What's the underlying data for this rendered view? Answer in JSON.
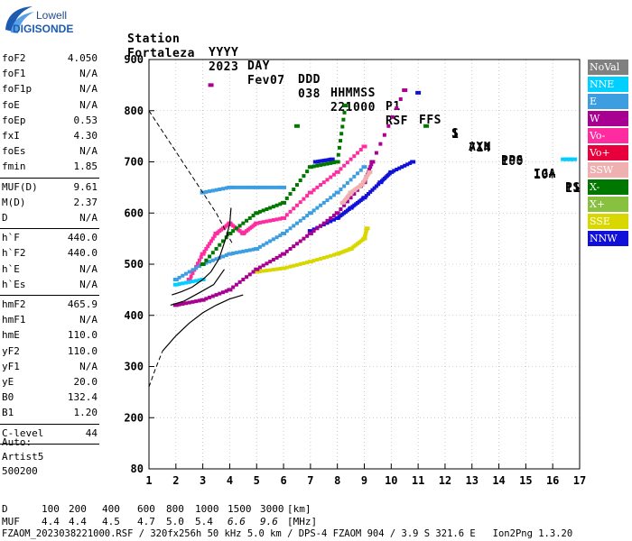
{
  "logo": {
    "line1": "Lowell",
    "line2": "DIGISONDE"
  },
  "header": {
    "labels": [
      "Station",
      "YYYY",
      "DAY",
      "DDD",
      "HHMMSS",
      "P1",
      "FFS",
      "S",
      "AXN",
      "PPS",
      "IGA",
      "PS"
    ],
    "values": [
      "Fortaleza",
      "2023",
      "Fev07",
      "038",
      "221000",
      "RSF",
      "1",
      "714",
      "100",
      "10+",
      "11"
    ]
  },
  "params": [
    [
      {
        "name": "foF2",
        "value": "4.050"
      },
      {
        "name": "foF1",
        "value": "N/A"
      },
      {
        "name": "foF1p",
        "value": "N/A"
      },
      {
        "name": "foE",
        "value": "N/A"
      },
      {
        "name": "foEp",
        "value": "0.53"
      },
      {
        "name": "fxI",
        "value": "4.30"
      },
      {
        "name": "foEs",
        "value": "N/A"
      },
      {
        "name": "fmin",
        "value": "1.85"
      }
    ],
    [
      {
        "name": "MUF(D)",
        "value": "9.61"
      },
      {
        "name": "M(D)",
        "value": "2.37"
      },
      {
        "name": "D",
        "value": "N/A"
      }
    ],
    [
      {
        "name": "h`F",
        "value": "440.0"
      },
      {
        "name": "h`F2",
        "value": "440.0"
      },
      {
        "name": "h`E",
        "value": "N/A"
      },
      {
        "name": "h`Es",
        "value": "N/A"
      }
    ],
    [
      {
        "name": "hmF2",
        "value": "465.9"
      },
      {
        "name": "hmF1",
        "value": "N/A"
      },
      {
        "name": "hmE",
        "value": "110.0"
      },
      {
        "name": "yF2",
        "value": "110.0"
      },
      {
        "name": "yF1",
        "value": "N/A"
      },
      {
        "name": "yE",
        "value": "20.0"
      },
      {
        "name": "B0",
        "value": "132.4"
      },
      {
        "name": "B1",
        "value": "1.20"
      }
    ],
    [
      {
        "name": "C-level",
        "value": "44"
      }
    ]
  ],
  "auto": {
    "line1": "Auto:",
    "line2": "Artist5",
    "line3": "500200"
  },
  "legend": [
    {
      "label": "NoVal",
      "color": "#808080"
    },
    {
      "label": "NNE",
      "color": "#00cfff"
    },
    {
      "label": "E",
      "color": "#3c9ee0"
    },
    {
      "label": "W",
      "color": "#a80090"
    },
    {
      "label": "Vo-",
      "color": "#ff2ca0"
    },
    {
      "label": "Vo+",
      "color": "#e8003c"
    },
    {
      "label": "SSW",
      "color": "#f0b0b0"
    },
    {
      "label": "X-",
      "color": "#007800"
    },
    {
      "label": "X+",
      "color": "#88c040"
    },
    {
      "label": "SSE",
      "color": "#d8d800"
    },
    {
      "label": "NNW",
      "color": "#1010d8"
    }
  ],
  "mufTable": {
    "dLabel": "D",
    "distances": [
      "100",
      "200",
      "400",
      "600",
      "800",
      "1000",
      "1500",
      "3000"
    ],
    "distUnit": "[km]",
    "mufLabel": "MUF",
    "mufs": [
      "4.4",
      "4.4",
      "4.5",
      "4.7",
      "5.0",
      "5.4",
      "6.6",
      "9.6"
    ],
    "mufUnit": "[MHz]"
  },
  "footer": "FZAOM_2023038221000.RSF / 320fx256h 50 kHz 5.0 km / DPS-4 FZAOM 904 / 3.9 S 321.6 E   Ion2Png 1.3.20",
  "chart_data": {
    "type": "scatter",
    "xlim": [
      1,
      17
    ],
    "ylim": [
      80,
      900
    ],
    "xticks": [
      "1",
      "2",
      "3",
      "4",
      "5",
      "6",
      "7",
      "8",
      "9",
      "10",
      "11",
      "12",
      "13",
      "14",
      "15",
      "16",
      "17"
    ],
    "yticks": [
      "80",
      "200",
      "300",
      "400",
      "500",
      "600",
      "700",
      "800",
      "900"
    ],
    "grid": true,
    "series": [
      {
        "name": "SSE",
        "points": [
          [
            5,
            485
          ],
          [
            6,
            492
          ],
          [
            7,
            505
          ],
          [
            8,
            520
          ],
          [
            8.5,
            530
          ],
          [
            9,
            550
          ],
          [
            9.1,
            570
          ]
        ]
      },
      {
        "name": "NNW",
        "points": [
          [
            7,
            565
          ],
          [
            8,
            590
          ],
          [
            8.5,
            610
          ],
          [
            9,
            630
          ],
          [
            9.6,
            660
          ],
          [
            10,
            680
          ],
          [
            10.8,
            700
          ],
          [
            7.2,
            700
          ],
          [
            7.8,
            705
          ],
          [
            11,
            835
          ]
        ]
      },
      {
        "name": "W",
        "points": [
          [
            2,
            420
          ],
          [
            3,
            430
          ],
          [
            4,
            450
          ],
          [
            5,
            490
          ],
          [
            6,
            520
          ],
          [
            7,
            560
          ],
          [
            8,
            600
          ],
          [
            9,
            660
          ],
          [
            9.3,
            700
          ],
          [
            10.5,
            840
          ],
          [
            3.3,
            850
          ]
        ]
      },
      {
        "name": "Vo-",
        "points": [
          [
            2.5,
            470
          ],
          [
            3,
            520
          ],
          [
            3.5,
            560
          ],
          [
            4,
            580
          ],
          [
            4.5,
            560
          ],
          [
            5,
            580
          ],
          [
            6,
            590
          ],
          [
            7,
            640
          ],
          [
            8,
            680
          ],
          [
            9,
            730
          ]
        ]
      },
      {
        "name": "E",
        "points": [
          [
            3,
            640
          ],
          [
            4,
            650
          ],
          [
            5,
            650
          ],
          [
            6,
            650
          ],
          [
            2,
            470
          ],
          [
            3,
            500
          ],
          [
            4,
            520
          ],
          [
            5,
            530
          ],
          [
            6,
            560
          ],
          [
            7,
            600
          ],
          [
            8,
            640
          ],
          [
            9,
            690
          ]
        ]
      },
      {
        "name": "X-",
        "points": [
          [
            3,
            500
          ],
          [
            4,
            560
          ],
          [
            5,
            600
          ],
          [
            6,
            620
          ],
          [
            7,
            690
          ],
          [
            8,
            700
          ],
          [
            8.3,
            810
          ],
          [
            11.3,
            770
          ],
          [
            6.5,
            770
          ]
        ]
      },
      {
        "name": "SSW",
        "points": [
          [
            8.2,
            620
          ],
          [
            8.5,
            640
          ],
          [
            8.9,
            655
          ],
          [
            9.2,
            680
          ]
        ]
      },
      {
        "name": "NNE",
        "points": [
          [
            2,
            460
          ],
          [
            3,
            470
          ],
          [
            16.4,
            705
          ],
          [
            16.8,
            705
          ]
        ]
      }
    ]
  }
}
